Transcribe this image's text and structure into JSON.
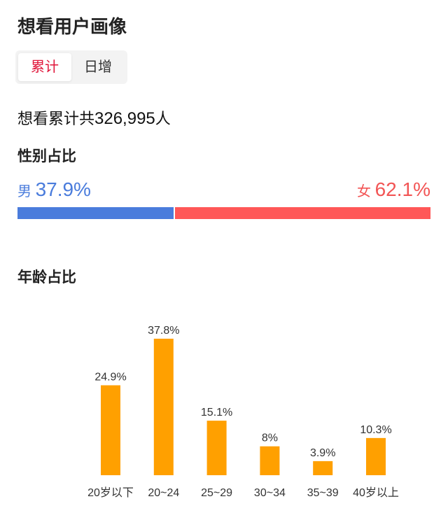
{
  "title": "想看用户画像",
  "tabs": [
    {
      "label": "累计",
      "active": true
    },
    {
      "label": "日增",
      "active": false
    }
  ],
  "total": {
    "prefix": "想看累计共",
    "count": "326,995",
    "suffix": "人"
  },
  "gender": {
    "title": "性别占比",
    "male_label": "男",
    "male_pct": "37.9%",
    "male_value": 37.9,
    "female_label": "女",
    "female_pct": "62.1%",
    "female_value": 62.1,
    "male_color": "#4a7cdc",
    "female_color": "#ff5757"
  },
  "age_title": "年龄占比",
  "chart_data": {
    "type": "bar",
    "categories": [
      "20岁以下",
      "20~24",
      "25~29",
      "30~34",
      "35~39",
      "40岁以上"
    ],
    "values": [
      24.9,
      37.8,
      15.1,
      8,
      3.9,
      10.3
    ],
    "labels": [
      "24.9%",
      "37.8%",
      "15.1%",
      "8%",
      "3.9%",
      "10.3%"
    ],
    "color": "#ffa000",
    "grid": false
  }
}
